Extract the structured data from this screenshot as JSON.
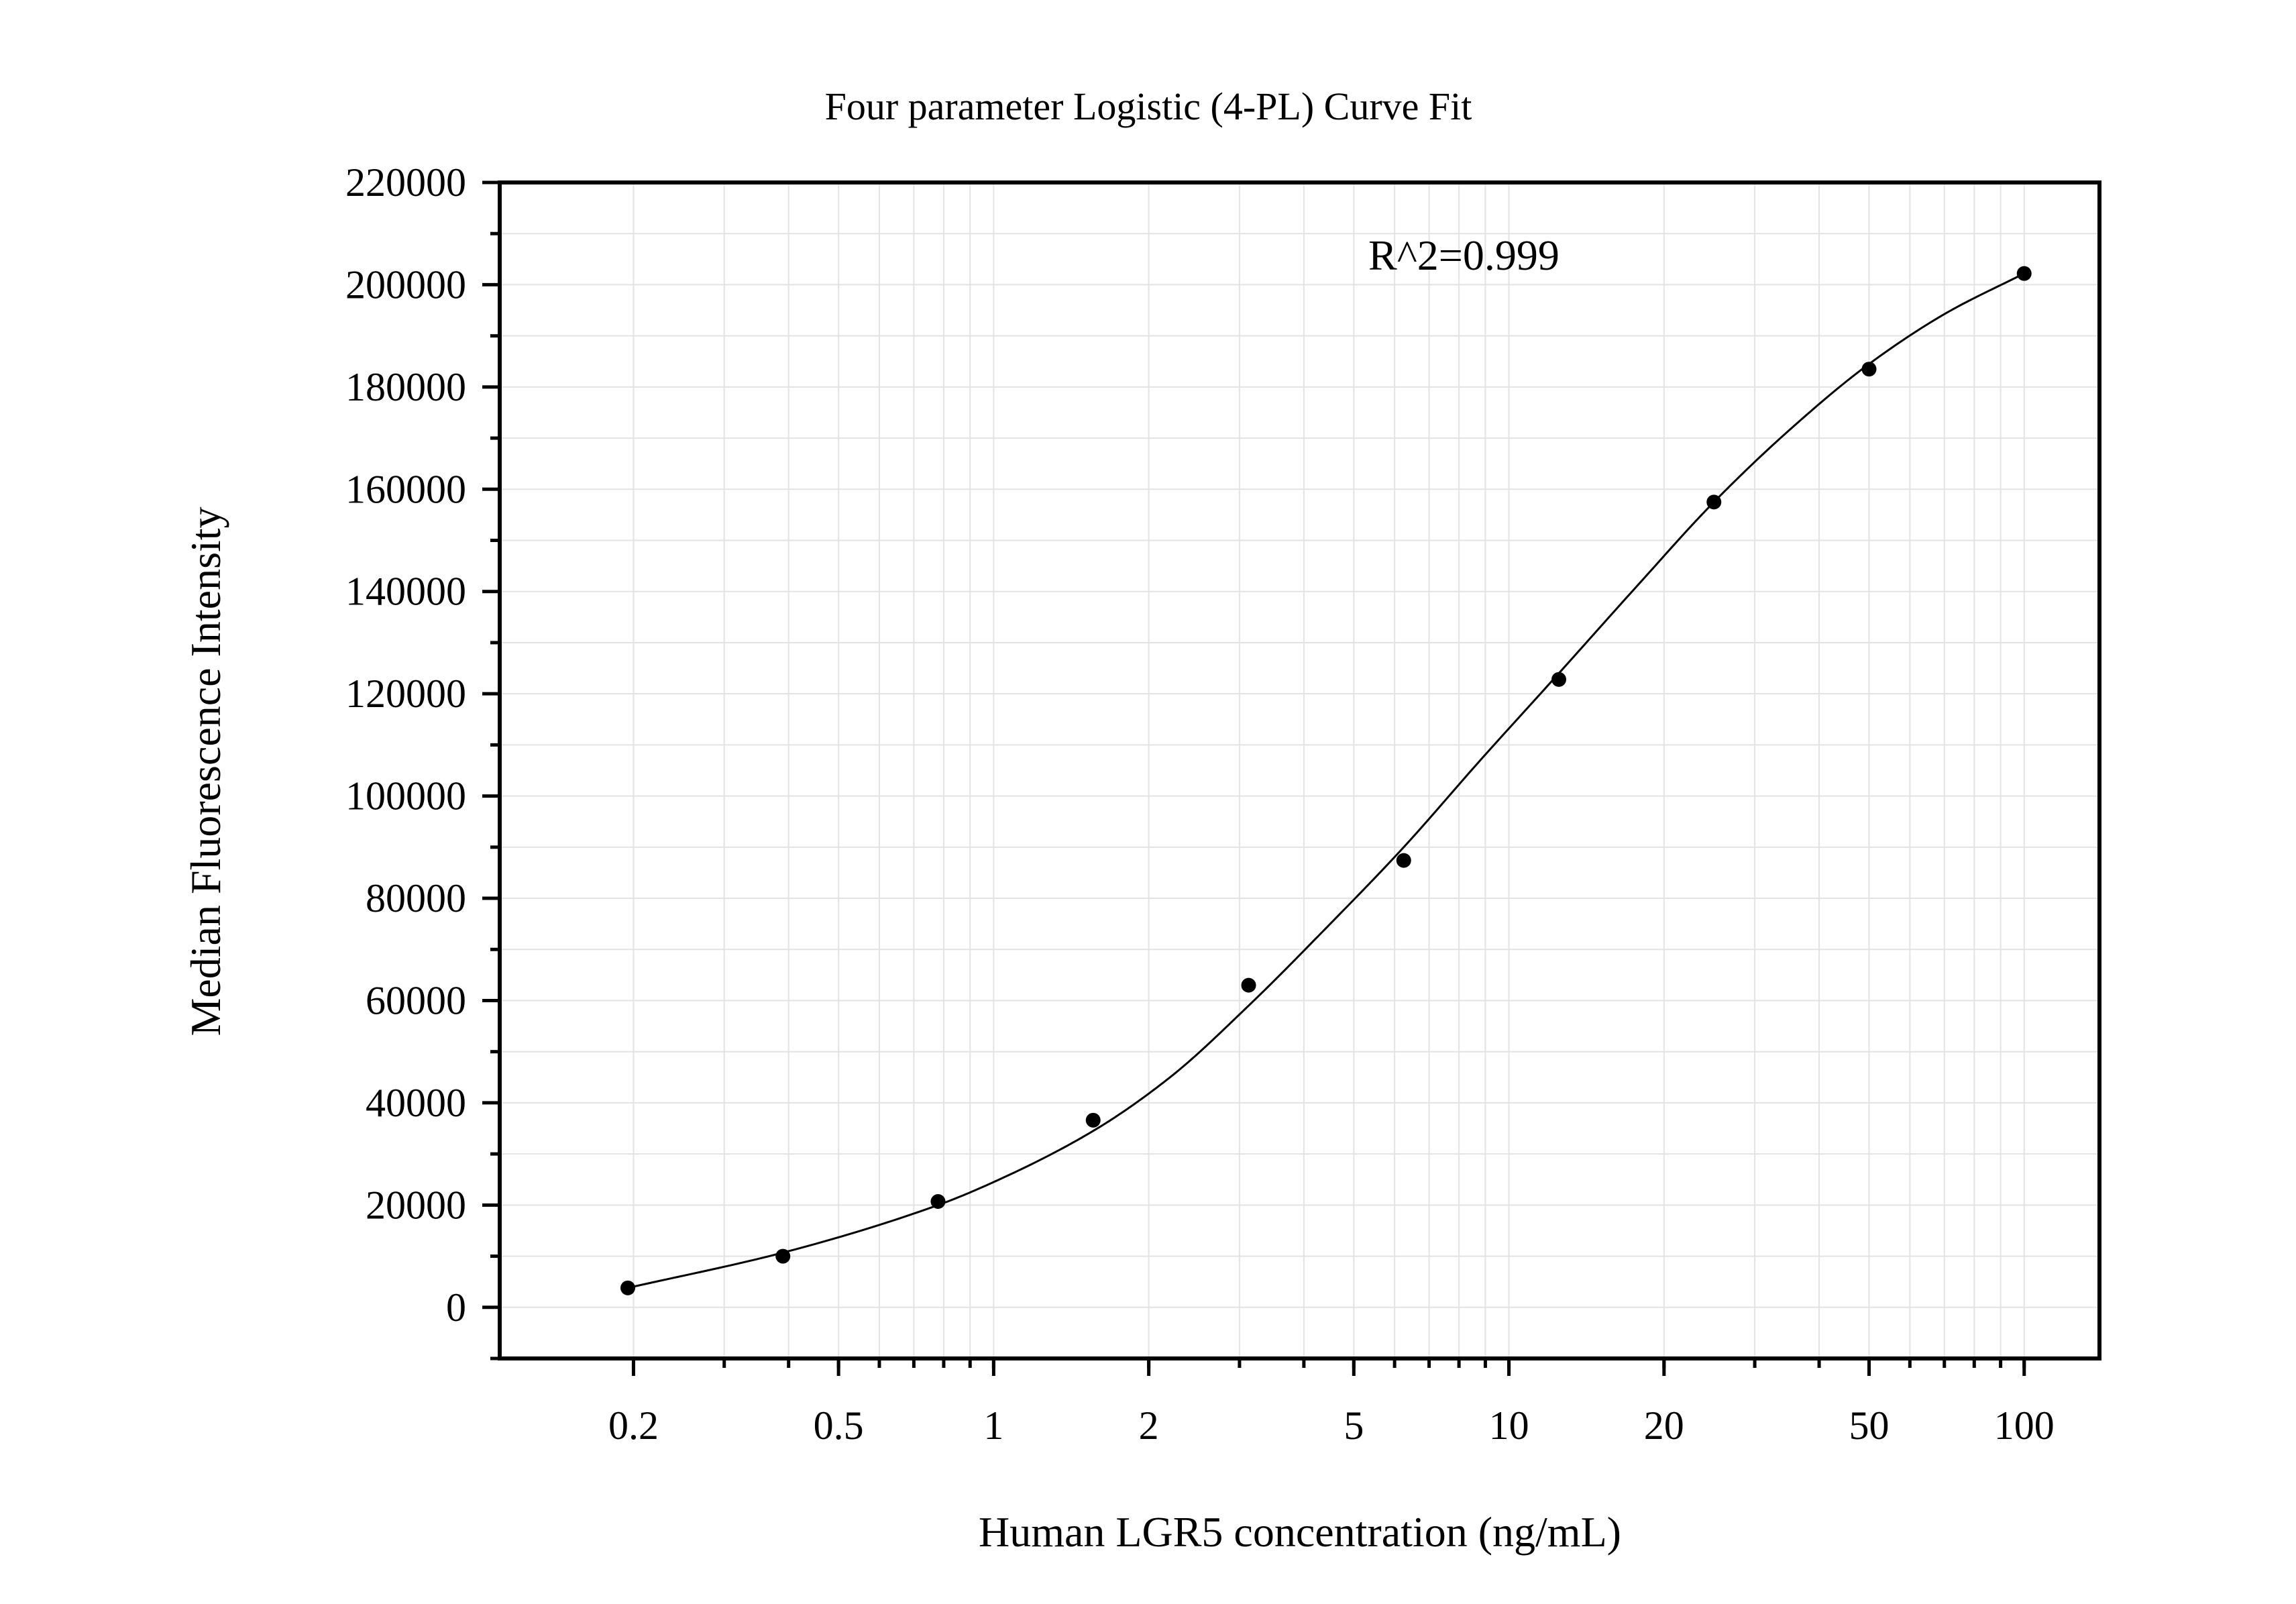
{
  "chart_data": {
    "type": "scatter",
    "title": "Four parameter Logistic (4-PL) Curve Fit",
    "xlabel": "Human LGR5 concentration (ng/mL)",
    "ylabel": "Median Fluorescence Intensity",
    "x_scale": "log",
    "xlim": [
      0.11,
      140
    ],
    "ylim": [
      -10000,
      220000
    ],
    "x_ticks": [
      0.2,
      0.5,
      1,
      2,
      5,
      10,
      20,
      50,
      100
    ],
    "x_tick_labels": [
      "0.2",
      "0.5",
      "1",
      "2",
      "5",
      "10",
      "20",
      "50",
      "100"
    ],
    "y_ticks": [
      0,
      20000,
      40000,
      60000,
      80000,
      100000,
      120000,
      140000,
      160000,
      180000,
      200000,
      220000
    ],
    "y_tick_labels": [
      "0",
      "20000",
      "40000",
      "60000",
      "80000",
      "100000",
      "120000",
      "140000",
      "160000",
      "180000",
      "200000",
      "220000"
    ],
    "grid": true,
    "annotation": "R^2=0.999",
    "series": [
      {
        "points": [
          {
            "x": 0.195,
            "y": 3800
          },
          {
            "x": 0.39,
            "y": 10000
          },
          {
            "x": 0.78,
            "y": 20700
          },
          {
            "x": 1.56,
            "y": 36600
          },
          {
            "x": 3.125,
            "y": 63000
          },
          {
            "x": 6.25,
            "y": 87400
          },
          {
            "x": 12.5,
            "y": 122800
          },
          {
            "x": 25,
            "y": 157500
          },
          {
            "x": 50,
            "y": 183500
          },
          {
            "x": 100,
            "y": 202200
          }
        ]
      }
    ],
    "fit_curve": {
      "model": "4-PL",
      "points": [
        {
          "x": 0.195,
          "y": 3800
        },
        {
          "x": 0.39,
          "y": 10700
        },
        {
          "x": 0.78,
          "y": 20000
        },
        {
          "x": 1.0,
          "y": 24500
        },
        {
          "x": 1.56,
          "y": 34500
        },
        {
          "x": 2.2,
          "y": 45000
        },
        {
          "x": 3.125,
          "y": 59000
        },
        {
          "x": 4.4,
          "y": 74000
        },
        {
          "x": 6.25,
          "y": 90000
        },
        {
          "x": 8.8,
          "y": 107000
        },
        {
          "x": 12.5,
          "y": 124000
        },
        {
          "x": 17.7,
          "y": 141000
        },
        {
          "x": 25,
          "y": 157500
        },
        {
          "x": 35.4,
          "y": 172000
        },
        {
          "x": 50,
          "y": 184500
        },
        {
          "x": 70.7,
          "y": 194500
        },
        {
          "x": 100,
          "y": 202200
        }
      ]
    }
  }
}
